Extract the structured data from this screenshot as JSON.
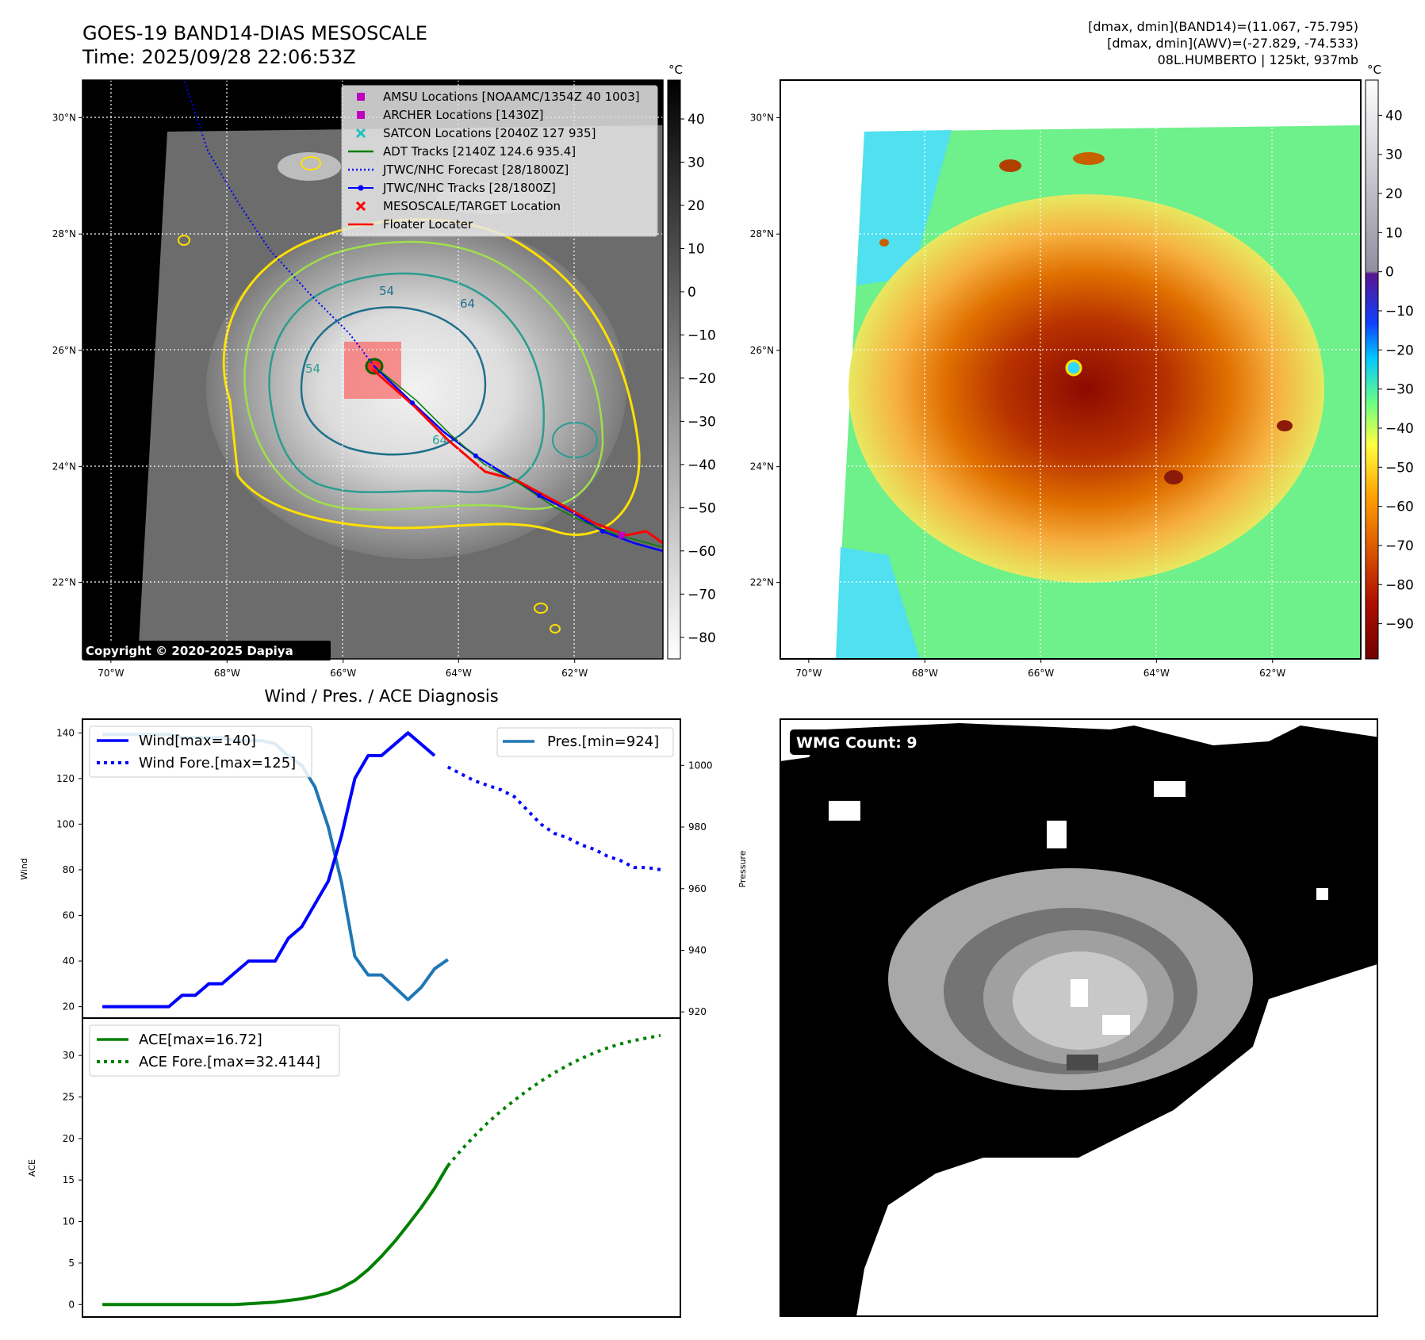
{
  "header": {
    "title_line1": "GOES-19 BAND14-DIAS MESOSCALE",
    "title_line2": "Time: 2025/09/28 22:06:53Z",
    "stats_line1": "[dmax, dmin](BAND14)=(11.067, -75.795)",
    "stats_line2": "[dmax, dmin](AWV)=(-27.829, -74.533)",
    "stats_line3": "08L.HUMBERTO | 125kt, 937mb"
  },
  "copyright": "Copyright © 2020-2025 Dapiya",
  "map": {
    "lon_ticks": [
      "70°W",
      "68°W",
      "66°W",
      "64°W",
      "62°W"
    ],
    "lat_ticks": [
      "30°N",
      "28°N",
      "26°N",
      "24°N",
      "22°N"
    ],
    "contour_labels": [
      "54",
      "64",
      "54",
      "64"
    ],
    "legend": [
      {
        "label": "AMSU Locations [NOAAMC/1354Z 40 1003]",
        "kind": "square",
        "color": "#c000c0"
      },
      {
        "label": "ARCHER Locations [1430Z]",
        "kind": "square",
        "color": "#c000c0"
      },
      {
        "label": "SATCON Locations [2040Z 127 935]",
        "kind": "x",
        "color": "#20c0c0"
      },
      {
        "label": "ADT Tracks [2140Z 124.6 935.4]",
        "kind": "line",
        "color": "#008000"
      },
      {
        "label": "JTWC/NHC Forecast [28/1800Z]",
        "kind": "dotted",
        "color": "#0000ff"
      },
      {
        "label": "JTWC/NHC Tracks [28/1800Z]",
        "kind": "dotline",
        "color": "#0000ff"
      },
      {
        "label": "MESOSCALE/TARGET Location",
        "kind": "x",
        "color": "#ff0000"
      },
      {
        "label": "Floater Locater",
        "kind": "line",
        "color": "#ff0000"
      }
    ]
  },
  "colorbar_gray": {
    "unit": "°C",
    "ticks": [
      "40",
      "30",
      "20",
      "10",
      "0",
      "−10",
      "−20",
      "−30",
      "−40",
      "−50",
      "−60",
      "−70",
      "−80"
    ]
  },
  "colorbar_color": {
    "unit": "°C",
    "ticks": [
      "40",
      "30",
      "20",
      "10",
      "0",
      "−10",
      "−20",
      "−30",
      "−40",
      "−50",
      "−60",
      "−70",
      "−80",
      "−90"
    ]
  },
  "wmg": {
    "label": "WMG Count: 9"
  },
  "chart_data": [
    {
      "type": "line",
      "title": "Wind / Pres. / ACE Diagnosis",
      "ylabel": "Wind",
      "ylim": [
        15,
        146
      ],
      "yticks": [
        "20",
        "40",
        "60",
        "80",
        "100",
        "120",
        "140"
      ],
      "series": [
        {
          "name": "Wind[max=140]",
          "color": "#0000ff",
          "style": "solid",
          "x": [
            0,
            1,
            2,
            3,
            4,
            5,
            6,
            7,
            8,
            9,
            10,
            11,
            12,
            13,
            14,
            15,
            16,
            17,
            18,
            19,
            20,
            21,
            22,
            23,
            24,
            25
          ],
          "values": [
            20,
            20,
            20,
            20,
            20,
            20,
            25,
            25,
            30,
            30,
            35,
            40,
            40,
            40,
            50,
            55,
            65,
            75,
            95,
            120,
            130,
            130,
            135,
            140,
            135,
            130
          ]
        },
        {
          "name": "Wind Fore.[max=125]",
          "color": "#0000ff",
          "style": "dotted",
          "x": [
            26,
            27,
            28,
            29,
            30,
            31,
            32,
            33,
            34,
            35,
            36,
            37,
            38,
            39,
            40,
            41,
            42
          ],
          "values": [
            125,
            122,
            119,
            117,
            115,
            112,
            106,
            100,
            96,
            94,
            91,
            89,
            86,
            84,
            81,
            81,
            80
          ]
        }
      ]
    },
    {
      "type": "line",
      "ylabel": "Pressure",
      "ylim": [
        918,
        1015
      ],
      "yticks": [
        "920",
        "940",
        "960",
        "980",
        "1000"
      ],
      "series": [
        {
          "name": "Pres.[min=924]",
          "color": "#1f77b4",
          "style": "solid",
          "x": [
            0,
            1,
            2,
            3,
            4,
            5,
            6,
            7,
            8,
            9,
            10,
            11,
            12,
            13,
            14,
            15,
            16,
            17,
            18,
            19,
            20,
            21,
            22,
            23,
            24,
            25,
            26
          ],
          "values": [
            1010,
            1010,
            1010,
            1010,
            1010,
            1010,
            1009,
            1009,
            1009,
            1009,
            1008,
            1008,
            1008,
            1007,
            1003,
            1000,
            993,
            980,
            962,
            938,
            932,
            932,
            928,
            924,
            928,
            934,
            937
          ]
        }
      ]
    },
    {
      "type": "line",
      "ylabel": "ACE",
      "ylim": [
        -1.5,
        34.5
      ],
      "yticks": [
        "0",
        "5",
        "10",
        "15",
        "20",
        "25",
        "30"
      ],
      "series": [
        {
          "name": "ACE[max=16.72]",
          "color": "#008000",
          "style": "solid",
          "x": [
            0,
            1,
            2,
            3,
            4,
            5,
            6,
            7,
            8,
            9,
            10,
            11,
            12,
            13,
            14,
            15,
            16,
            17,
            18,
            19,
            20,
            21,
            22,
            23,
            24,
            25,
            26
          ],
          "values": [
            0,
            0,
            0,
            0,
            0,
            0,
            0,
            0,
            0,
            0,
            0,
            0.1,
            0.2,
            0.3,
            0.5,
            0.7,
            1.0,
            1.4,
            2.0,
            2.9,
            4.2,
            5.8,
            7.6,
            9.6,
            11.7,
            14.0,
            16.72
          ]
        },
        {
          "name": "ACE Fore.[max=32.4144]",
          "color": "#008000",
          "style": "dotted",
          "x": [
            26,
            27,
            28,
            29,
            30,
            31,
            32,
            33,
            34,
            35,
            36,
            37,
            38,
            39,
            40,
            41,
            42
          ],
          "values": [
            16.72,
            18.6,
            20.3,
            21.9,
            23.3,
            24.6,
            25.8,
            26.9,
            27.9,
            28.8,
            29.6,
            30.3,
            30.9,
            31.4,
            31.8,
            32.1,
            32.4144
          ]
        }
      ]
    }
  ]
}
